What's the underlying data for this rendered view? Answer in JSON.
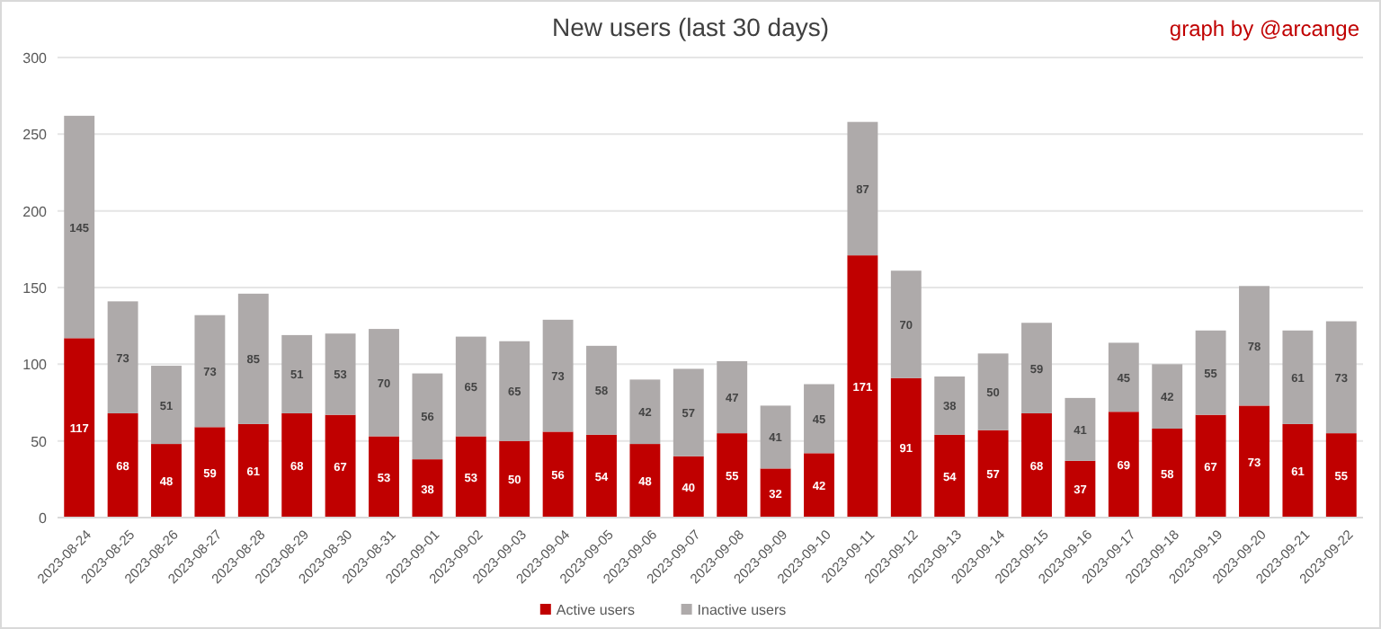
{
  "chart_data": {
    "type": "bar",
    "title": "New users (last 30 days)",
    "annotations": [
      "graph by @arcange"
    ],
    "categories": [
      "2023-08-24",
      "2023-08-25",
      "2023-08-26",
      "2023-08-27",
      "2023-08-28",
      "2023-08-29",
      "2023-08-30",
      "2023-08-31",
      "2023-09-01",
      "2023-09-02",
      "2023-09-03",
      "2023-09-04",
      "2023-09-05",
      "2023-09-06",
      "2023-09-07",
      "2023-09-08",
      "2023-09-09",
      "2023-09-10",
      "2023-09-11",
      "2023-09-12",
      "2023-09-13",
      "2023-09-14",
      "2023-09-15",
      "2023-09-16",
      "2023-09-17",
      "2023-09-18",
      "2023-09-19",
      "2023-09-20",
      "2023-09-21",
      "2023-09-22"
    ],
    "series": [
      {
        "name": "Active users",
        "color": "#c00000",
        "values": [
          117,
          68,
          48,
          59,
          61,
          68,
          67,
          53,
          38,
          53,
          50,
          56,
          54,
          48,
          40,
          55,
          32,
          42,
          171,
          91,
          54,
          57,
          68,
          37,
          69,
          58,
          67,
          73,
          61,
          55
        ]
      },
      {
        "name": "Inactive users",
        "color": "#aeaaaa",
        "values": [
          145,
          73,
          51,
          73,
          85,
          51,
          53,
          70,
          56,
          65,
          65,
          73,
          58,
          42,
          57,
          47,
          41,
          45,
          87,
          70,
          38,
          50,
          59,
          41,
          45,
          42,
          55,
          78,
          61,
          73
        ]
      }
    ],
    "stacked": true,
    "ylim": [
      0,
      300
    ],
    "yticks": [
      0,
      50,
      100,
      150,
      200,
      250,
      300
    ],
    "grid": "y",
    "data_labels": true,
    "legend": "bottom"
  }
}
